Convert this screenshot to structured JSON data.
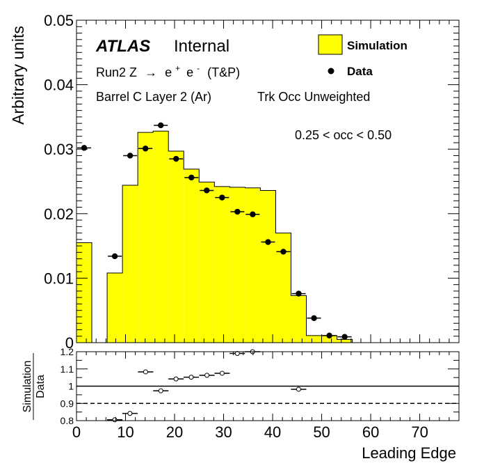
{
  "chart_data": [
    {
      "type": "bar",
      "title": "",
      "xlabel": "Leading Edge",
      "ylabel": "Arbitrary units",
      "xlim": [
        0,
        78
      ],
      "ylim": [
        0,
        0.05
      ],
      "yticks": [
        "0",
        "0.01",
        "0.02",
        "0.03",
        "0.04",
        "0.05"
      ],
      "labels": {
        "atlas": "ATLAS",
        "internal": "Internal",
        "process_prefix": "Run2 Z",
        "process_arrow": "→",
        "process_e": "e",
        "process_plus": "+",
        "process_minus": "-",
        "process_suffix": "(T&P)",
        "region": "Barrel C Layer 2 (Ar)",
        "weighting": "Trk Occ Unweighted",
        "occupancy_bin": "0.25 < occ < 0.50"
      },
      "legend": {
        "placement": "top-right",
        "entries": [
          {
            "label": "Simulation",
            "style": "filled-box",
            "color": "#ffff00"
          },
          {
            "label": "Data",
            "style": "marker",
            "color": "#000000"
          }
        ]
      },
      "bin_edges": [
        0,
        3.125,
        6.25,
        9.375,
        12.5,
        15.625,
        18.75,
        21.875,
        25,
        28.125,
        31.25,
        34.375,
        37.5,
        40.625,
        43.75,
        46.875,
        50,
        53.125,
        56.25,
        59.375,
        62.5,
        65.625,
        68.75,
        71.875,
        75,
        78.125
      ],
      "series": [
        {
          "name": "Simulation",
          "values": [
            0.0155,
            0,
            0.0108,
            0.0244,
            0.0326,
            0.0328,
            0.0297,
            0.0269,
            0.0249,
            0.0242,
            0.0241,
            0.024,
            0.0236,
            0.017,
            0.0073,
            0.0011,
            0.0011,
            0.0005,
            0,
            0,
            0,
            0,
            0,
            0,
            0
          ],
          "color": "#ffff00"
        },
        {
          "name": "Data",
          "values": [
            0.0302,
            null,
            0.0134,
            0.029,
            0.0301,
            0.0337,
            0.0285,
            0.0256,
            0.0236,
            0.0225,
            0.0203,
            0.0199,
            0.0156,
            0.0141,
            0.0076,
            0.0038,
            0.0011,
            0.0009,
            null,
            null,
            null,
            null,
            null,
            null,
            null
          ],
          "color": "#000000"
        }
      ],
      "grid": false
    },
    {
      "type": "scatter",
      "title": "",
      "xlabel": "Leading Edge",
      "ylabel_numerator": "Simulation",
      "ylabel_denominator": "Data",
      "xlim": [
        0,
        78
      ],
      "ylim": [
        0.8,
        1.2
      ],
      "xticks": [
        "0",
        "10",
        "20",
        "30",
        "40",
        "50",
        "60",
        "70"
      ],
      "yticks": [
        "0.8",
        "0.9",
        "1",
        "1.1",
        "1.2"
      ],
      "reference_lines": [
        1.0,
        0.9
      ],
      "series": [
        {
          "name": "Simulation/Data",
          "x": [
            7.8,
            10.9,
            14.1,
            17.2,
            20.3,
            23.4,
            26.6,
            29.7,
            32.8,
            35.9,
            45.3
          ],
          "y": [
            0.805,
            0.842,
            1.083,
            0.973,
            1.042,
            1.052,
            1.063,
            1.075,
            1.19,
            1.2,
            0.982
          ]
        }
      ]
    }
  ]
}
